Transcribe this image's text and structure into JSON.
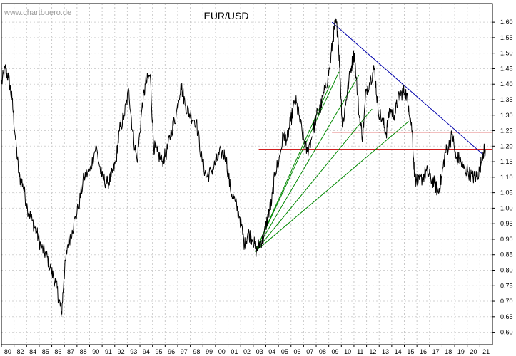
{
  "watermark": "www.chartbuero.de",
  "chart_data": {
    "type": "line",
    "title": "EUR/USD",
    "xlabel": "",
    "ylabel": "",
    "xlim": [
      1980,
      2021.6
    ],
    "ylim": [
      0.56,
      1.66
    ],
    "grid": true,
    "y_ticks": [
      "0.60",
      "0.65",
      "0.70",
      "0.75",
      "0.80",
      "0.85",
      "0.90",
      "0.95",
      "1.00",
      "1.05",
      "1.10",
      "1.15",
      "1.20",
      "1.25",
      "1.30",
      "1.35",
      "1.40",
      "1.45",
      "1.50",
      "1.55",
      "1.60"
    ],
    "x_tick_labels": [
      "80",
      "82",
      "84",
      "85",
      "86",
      "87",
      "88",
      "90",
      "91",
      "92",
      "93",
      "94",
      "95",
      "96",
      "97",
      "98",
      "99",
      "00",
      "01",
      "02",
      "03",
      "04",
      "05",
      "06",
      "07",
      "08",
      "09",
      "10",
      "11",
      "12",
      "13",
      "14",
      "15",
      "16",
      "17",
      "18",
      "19",
      "20",
      "21"
    ],
    "series": [
      {
        "color": "#000000",
        "x": [
          1980.0,
          1980.3,
          1980.6,
          1980.9,
          1981.2,
          1981.5,
          1981.8,
          1982.2,
          1982.6,
          1983.0,
          1983.4,
          1983.8,
          1984.2,
          1984.6,
          1984.9,
          1985.1,
          1985.3,
          1985.6,
          1986.0,
          1986.5,
          1987.0,
          1987.5,
          1988.0,
          1988.5,
          1989.0,
          1989.3,
          1989.7,
          1990.0,
          1990.4,
          1990.8,
          1991.1,
          1991.5,
          1991.9,
          1992.2,
          1992.6,
          1992.9,
          1993.2,
          1993.6,
          1994.0,
          1994.4,
          1994.8,
          1995.2,
          1995.6,
          1996.0,
          1996.5,
          1997.0,
          1997.4,
          1997.8,
          1998.2,
          1998.6,
          1999.0,
          1999.4,
          1999.8,
          2000.2,
          2000.6,
          2000.9,
          2001.3,
          2001.6,
          2001.9,
          2002.2,
          2002.6,
          2002.9,
          2003.2,
          2003.5,
          2003.9,
          2004.2,
          2004.5,
          2004.9,
          2005.2,
          2005.6,
          2005.9,
          2006.3,
          2006.7,
          2007.0,
          2007.4,
          2007.8,
          2008.1,
          2008.3,
          2008.5,
          2008.7,
          2008.9,
          2009.2,
          2009.6,
          2009.9,
          2010.3,
          2010.6,
          2010.9,
          2011.3,
          2011.6,
          2011.9,
          2012.3,
          2012.6,
          2012.9,
          2013.3,
          2013.6,
          2013.9,
          2014.2,
          2014.5,
          2014.8,
          2015.0,
          2015.3,
          2015.7,
          2016.0,
          2016.3,
          2016.7,
          2017.0,
          2017.3,
          2017.6,
          2017.9,
          2018.2,
          2018.5,
          2018.8,
          2019.1,
          2019.5,
          2019.9,
          2020.2,
          2020.5,
          2020.8,
          2021.0
        ],
        "y": [
          1.4,
          1.45,
          1.42,
          1.35,
          1.22,
          1.1,
          1.08,
          1.0,
          0.96,
          0.92,
          0.87,
          0.85,
          0.8,
          0.76,
          0.7,
          0.66,
          0.78,
          0.88,
          0.93,
          1.0,
          1.1,
          1.12,
          1.2,
          1.1,
          1.08,
          1.1,
          1.15,
          1.25,
          1.3,
          1.38,
          1.25,
          1.15,
          1.32,
          1.4,
          1.43,
          1.2,
          1.18,
          1.15,
          1.18,
          1.25,
          1.3,
          1.4,
          1.33,
          1.3,
          1.28,
          1.15,
          1.1,
          1.12,
          1.15,
          1.18,
          1.17,
          1.06,
          1.02,
          0.97,
          0.88,
          0.92,
          0.9,
          0.86,
          0.89,
          0.9,
          0.98,
          1.02,
          1.12,
          1.15,
          1.24,
          1.22,
          1.28,
          1.35,
          1.3,
          1.22,
          1.18,
          1.23,
          1.3,
          1.32,
          1.38,
          1.45,
          1.55,
          1.6,
          1.57,
          1.42,
          1.26,
          1.35,
          1.45,
          1.5,
          1.3,
          1.23,
          1.38,
          1.42,
          1.45,
          1.32,
          1.28,
          1.24,
          1.32,
          1.3,
          1.35,
          1.37,
          1.38,
          1.33,
          1.25,
          1.1,
          1.08,
          1.1,
          1.12,
          1.1,
          1.08,
          1.05,
          1.1,
          1.18,
          1.2,
          1.24,
          1.16,
          1.16,
          1.13,
          1.12,
          1.1,
          1.1,
          1.12,
          1.18,
          1.19
        ]
      }
    ],
    "horizontal_lines": [
      {
        "y": 1.365,
        "x_start": 2004.2,
        "x_end": 2021.6,
        "color": "#cc0000"
      },
      {
        "y": 1.245,
        "x_start": 2008.0,
        "x_end": 2021.6,
        "color": "#cc0000"
      },
      {
        "y": 1.19,
        "x_start": 2001.8,
        "x_end": 2021.6,
        "color": "#cc0000"
      },
      {
        "y": 1.165,
        "x_start": 2004.7,
        "x_end": 2021.6,
        "color": "#cc0000"
      }
    ],
    "trend_lines": [
      {
        "x1": 2008.0,
        "y1": 1.6,
        "x2": 2020.9,
        "y2": 1.17,
        "color": "#0000aa"
      },
      {
        "x1": 2001.5,
        "y1": 0.86,
        "x2": 2007.8,
        "y2": 1.395,
        "color": "#008800"
      },
      {
        "x1": 2001.5,
        "y1": 0.86,
        "x2": 2008.6,
        "y2": 1.44,
        "color": "#008800"
      },
      {
        "x1": 2001.5,
        "y1": 0.86,
        "x2": 2010.3,
        "y2": 1.43,
        "color": "#008800"
      },
      {
        "x1": 2001.5,
        "y1": 0.86,
        "x2": 2011.4,
        "y2": 1.32,
        "color": "#008800"
      },
      {
        "x1": 2001.5,
        "y1": 0.86,
        "x2": 2014.5,
        "y2": 1.28,
        "color": "#008800"
      }
    ]
  }
}
